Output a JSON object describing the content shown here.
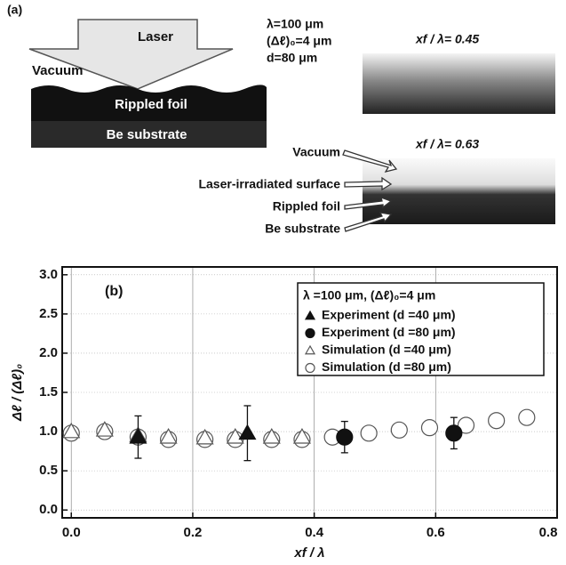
{
  "panel_a": {
    "label": "(a)",
    "laser": "Laser",
    "vacuum": "Vacuum",
    "foil": "Rippled foil",
    "substrate": "Be substrate",
    "params": [
      "λ=100 μm",
      "(Δℓ)₀=4 μm",
      "d=80 μm"
    ],
    "image_labels": [
      "xf / λ= 0.45",
      "xf / λ= 0.63"
    ],
    "callouts": [
      "Vacuum",
      "Laser-irradiated surface",
      "Rippled foil",
      "Be substrate"
    ]
  },
  "chart_data": {
    "type": "scatter",
    "panel_label": "(b)",
    "x_label": "xf / λ",
    "y_label": "Δℓ / (Δℓ)₀",
    "legend_title": "λ =100 μm, (Δℓ)₀=4 μm",
    "xlim": [
      -0.015,
      0.8
    ],
    "ylim": [
      -0.1,
      3.1
    ],
    "xticks": [
      {
        "value": 0,
        "label": "0.0"
      },
      0.2,
      0.4,
      0.6,
      0.8
    ],
    "yticks": [
      {
        "value": 0,
        "label": "0.0"
      },
      0.5,
      {
        "value": 1,
        "label": "1.0"
      },
      1.5,
      {
        "value": 2,
        "label": "2.0"
      },
      2.5,
      {
        "value": 3,
        "label": "3.0"
      }
    ],
    "grid": true,
    "series": [
      {
        "name": "Experiment (d =40 μm)",
        "color": "#111111",
        "marker": "triangle-filled",
        "x": [
          0.11,
          0.29
        ],
        "values": [
          0.93,
          0.98
        ],
        "errors": [
          0.27,
          0.35
        ]
      },
      {
        "name": "Experiment (d =80 μm)",
        "color": "#111111",
        "marker": "circle-filled",
        "x": [
          0.45,
          0.63
        ],
        "values": [
          0.93,
          0.98
        ],
        "errors": [
          0.2,
          0.2
        ]
      },
      {
        "name": "Simulation  (d =40 μm)",
        "color": "#111111",
        "marker": "triangle-open",
        "x": [
          0.0,
          0.055,
          0.11,
          0.16,
          0.22,
          0.27,
          0.33,
          0.38
        ],
        "values": [
          1.0,
          1.02,
          0.95,
          0.93,
          0.92,
          0.93,
          0.93,
          0.93
        ]
      },
      {
        "name": "Simulation  (d =80 μm)",
        "color": "#111111",
        "marker": "circle-open",
        "x": [
          0.0,
          0.055,
          0.11,
          0.16,
          0.22,
          0.27,
          0.33,
          0.38,
          0.43,
          0.49,
          0.54,
          0.59,
          0.65,
          0.7,
          0.75
        ],
        "values": [
          0.98,
          1.0,
          0.93,
          0.9,
          0.9,
          0.9,
          0.9,
          0.9,
          0.93,
          0.98,
          1.02,
          1.05,
          1.08,
          1.14,
          1.18
        ]
      }
    ]
  }
}
